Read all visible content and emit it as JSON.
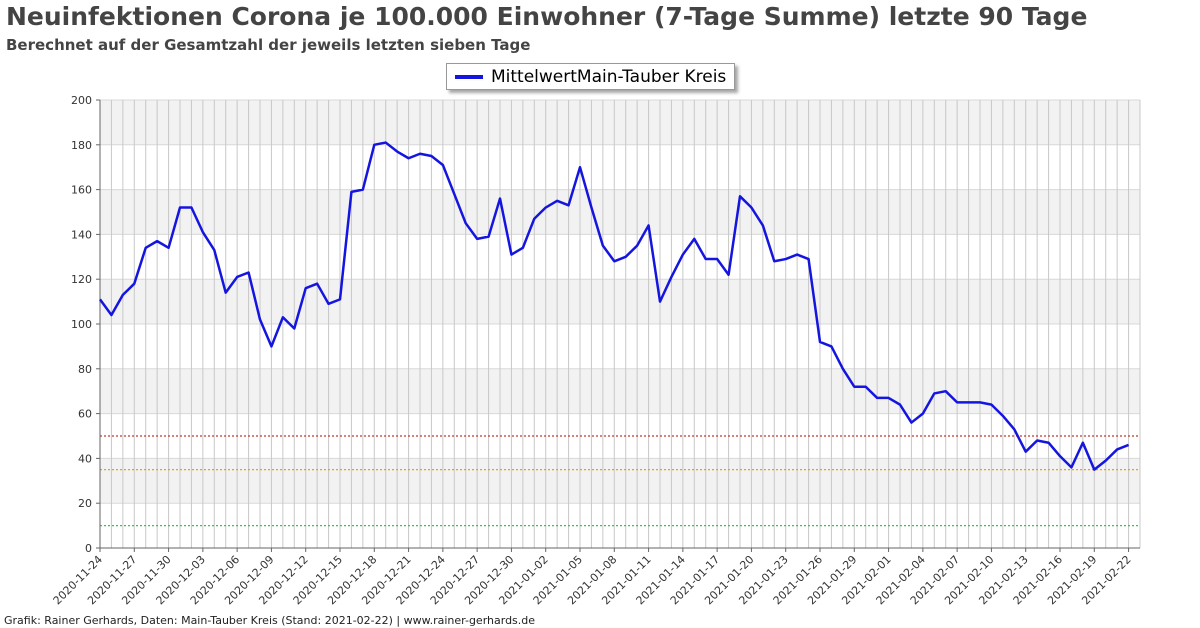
{
  "header": {
    "title": "Neuinfektionen Corona je 100.000 Einwohner (7-Tage Summe) letzte 90 Tage",
    "subtitle": "Berechnet auf der Gesamtzahl der jeweils letzten sieben Tage"
  },
  "footer": {
    "text": "Grafik: Rainer Gerhards, Daten: Main-Tauber Kreis (Stand: 2021-02-22) | www.rainer-gerhards.de"
  },
  "colors": {
    "series": "#1515e0",
    "threshold_50": "#c0392b",
    "threshold_35": "#f39c12",
    "threshold_10": "#2ecc40",
    "band": "#f2f2f2",
    "grid": "#c8c8c8"
  },
  "chart_data": {
    "type": "line",
    "title": "Neuinfektionen Corona je 100.000 Einwohner (7-Tage Summe) letzte 90 Tage",
    "xlabel": "",
    "ylabel": "",
    "ylim": [
      0,
      200
    ],
    "yticks": [
      0,
      20,
      40,
      60,
      80,
      100,
      120,
      140,
      160,
      180,
      200
    ],
    "x_start": "2020-11-24",
    "x_end": "2021-02-23",
    "xticks": [
      "2020-11-24",
      "2020-11-27",
      "2020-11-30",
      "2020-12-03",
      "2020-12-06",
      "2020-12-09",
      "2020-12-12",
      "2020-12-15",
      "2020-12-18",
      "2020-12-21",
      "2020-12-24",
      "2020-12-27",
      "2020-12-30",
      "2021-01-02",
      "2021-01-05",
      "2021-01-08",
      "2021-01-11",
      "2021-01-14",
      "2021-01-17",
      "2021-01-20",
      "2021-01-23",
      "2021-01-26",
      "2021-01-29",
      "2021-02-01",
      "2021-02-04",
      "2021-02-07",
      "2021-02-10",
      "2021-02-13",
      "2021-02-16",
      "2021-02-19",
      "2021-02-22"
    ],
    "grid": true,
    "legend_placement": "top-center",
    "thresholds": [
      50,
      35,
      10
    ],
    "series": [
      {
        "name": "MittelwertMain-Tauber Kreis",
        "values": [
          111,
          104,
          113,
          118,
          134,
          137,
          134,
          152,
          152,
          141,
          133,
          114,
          121,
          123,
          102,
          90,
          103,
          98,
          116,
          118,
          109,
          111,
          159,
          160,
          180,
          181,
          177,
          174,
          176,
          175,
          171,
          158,
          145,
          138,
          139,
          156,
          131,
          134,
          147,
          152,
          155,
          153,
          170,
          152,
          135,
          128,
          130,
          135,
          144,
          110,
          121,
          131,
          138,
          129,
          129,
          122,
          157,
          152,
          144,
          128,
          129,
          131,
          129,
          92,
          90,
          80,
          72,
          72,
          67,
          67,
          64,
          56,
          60,
          69,
          70,
          65,
          65,
          65,
          64,
          59,
          53,
          43,
          48,
          47,
          41,
          36,
          47,
          35,
          39,
          44,
          46
        ]
      }
    ]
  }
}
